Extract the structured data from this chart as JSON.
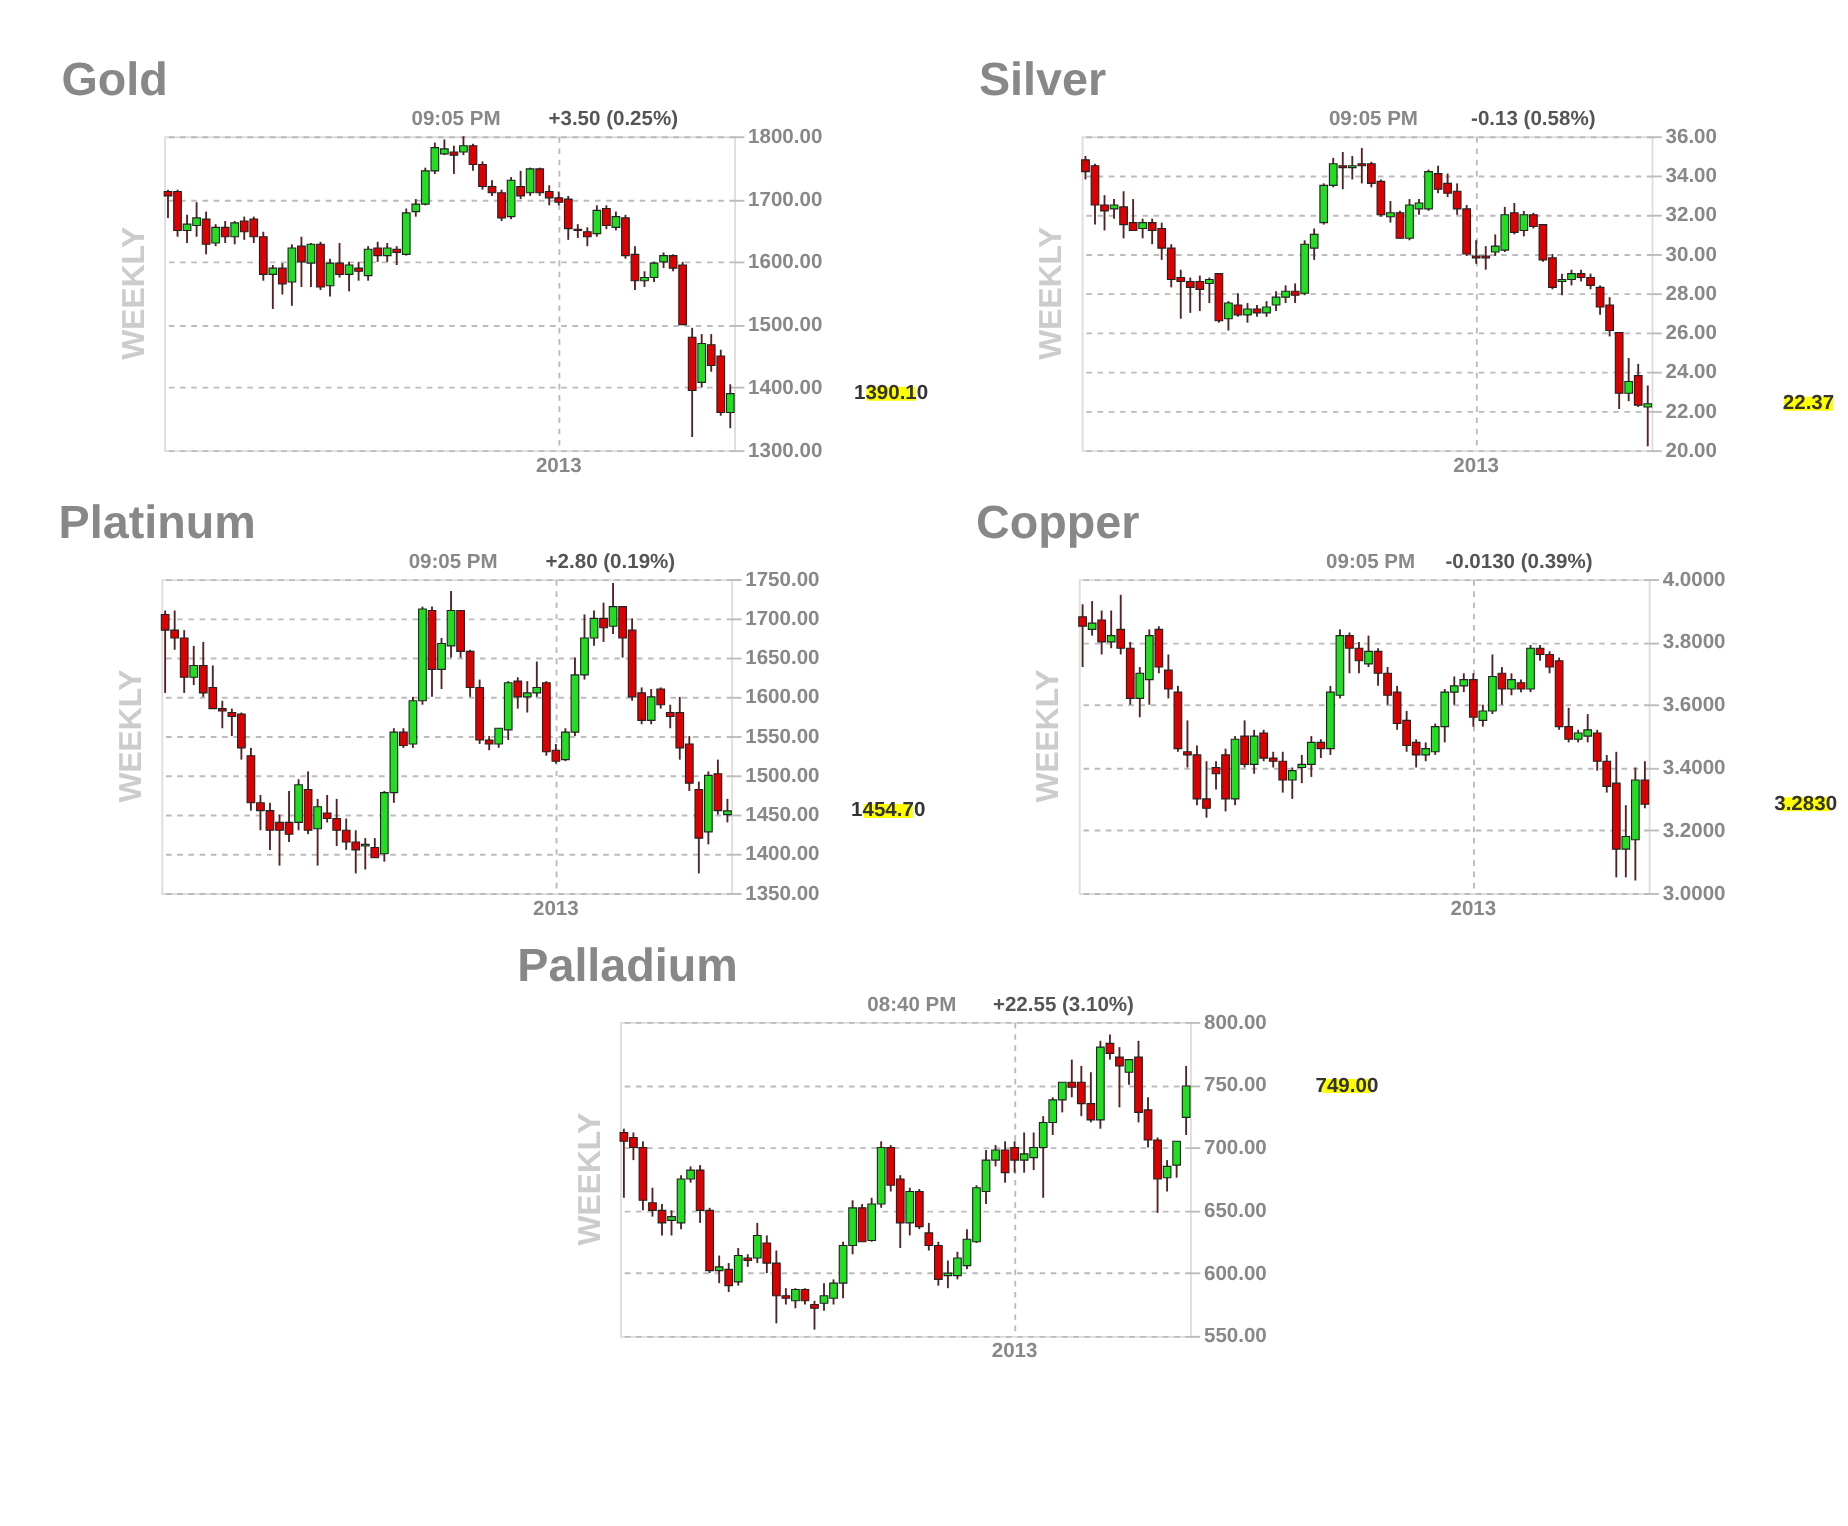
{
  "chart_data": [
    {
      "type": "candlestick",
      "title": "Gold",
      "ylabel": "WEEKLY",
      "grid": true,
      "annotations": [
        "09:05 PM",
        "+3.50 (0.25%)",
        "1390.10"
      ],
      "categories": [
        null,
        null,
        null,
        null,
        null,
        null,
        null,
        null,
        null,
        null,
        null,
        null,
        null,
        null,
        null,
        null,
        null,
        null,
        null,
        null,
        null,
        null,
        null,
        null,
        null,
        null,
        null,
        null,
        null,
        null,
        null,
        null,
        null,
        null,
        null,
        null,
        null,
        null,
        null,
        null,
        null,
        "2013",
        null,
        null,
        null,
        null,
        null,
        null,
        null,
        null,
        null,
        null,
        null,
        null,
        null,
        null,
        null,
        null,
        null,
        null
      ],
      "ylim": [
        1300,
        1800
      ],
      "yticks": [
        {
          "value": 1300,
          "label": "1300.00"
        },
        {
          "value": 1400,
          "label": "1400.00"
        },
        {
          "value": 1500,
          "label": "1500.00"
        },
        {
          "value": 1600,
          "label": "1600.00"
        },
        {
          "value": 1700,
          "label": "1700.00"
        },
        {
          "value": 1800,
          "label": "1800.00"
        }
      ],
      "ohlc": [
        [
          1712,
          1715,
          1670,
          1705
        ],
        [
          1712,
          1715,
          1640,
          1650
        ],
        [
          1650,
          1675,
          1630,
          1660
        ],
        [
          1658,
          1695,
          1640,
          1670
        ],
        [
          1668,
          1680,
          1612,
          1628
        ],
        [
          1630,
          1660,
          1625,
          1655
        ],
        [
          1655,
          1665,
          1630,
          1640
        ],
        [
          1640,
          1665,
          1628,
          1662
        ],
        [
          1665,
          1672,
          1635,
          1648
        ],
        [
          1668,
          1672,
          1630,
          1640
        ],
        [
          1640,
          1648,
          1570,
          1580
        ],
        [
          1580,
          1595,
          1525,
          1590
        ],
        [
          1590,
          1598,
          1548,
          1565
        ],
        [
          1568,
          1628,
          1530,
          1622
        ],
        [
          1625,
          1640,
          1560,
          1600
        ],
        [
          1598,
          1630,
          1560,
          1628
        ],
        [
          1628,
          1632,
          1555,
          1560
        ],
        [
          1562,
          1605,
          1545,
          1598
        ],
        [
          1598,
          1630,
          1575,
          1580
        ],
        [
          1580,
          1600,
          1553,
          1595
        ],
        [
          1590,
          1600,
          1570,
          1585
        ],
        [
          1578,
          1625,
          1570,
          1620
        ],
        [
          1622,
          1632,
          1600,
          1610
        ],
        [
          1610,
          1630,
          1600,
          1622
        ],
        [
          1620,
          1625,
          1595,
          1615
        ],
        [
          1612,
          1685,
          1610,
          1678
        ],
        [
          1680,
          1700,
          1672,
          1692
        ],
        [
          1692,
          1750,
          1690,
          1745
        ],
        [
          1745,
          1790,
          1740,
          1782
        ],
        [
          1772,
          1795,
          1770,
          1780
        ],
        [
          1775,
          1785,
          1740,
          1770
        ],
        [
          1775,
          1800,
          1770,
          1785
        ],
        [
          1785,
          1788,
          1745,
          1755
        ],
        [
          1755,
          1760,
          1715,
          1720
        ],
        [
          1720,
          1730,
          1705,
          1710
        ],
        [
          1710,
          1715,
          1665,
          1670
        ],
        [
          1672,
          1735,
          1668,
          1730
        ],
        [
          1720,
          1745,
          1700,
          1705
        ],
        [
          1710,
          1750,
          1705,
          1748
        ],
        [
          1748,
          1750,
          1705,
          1710
        ],
        [
          1712,
          1722,
          1690,
          1702
        ],
        [
          1702,
          1712,
          1690,
          1695
        ],
        [
          1700,
          1705,
          1635,
          1653
        ],
        [
          1652,
          1660,
          1638,
          1650
        ],
        [
          1648,
          1655,
          1625,
          1640
        ],
        [
          1645,
          1690,
          1640,
          1682
        ],
        [
          1685,
          1690,
          1652,
          1658
        ],
        [
          1655,
          1680,
          1650,
          1672
        ],
        [
          1670,
          1675,
          1605,
          1610
        ],
        [
          1612,
          1625,
          1555,
          1570
        ],
        [
          1570,
          1585,
          1560,
          1575
        ],
        [
          1575,
          1600,
          1568,
          1598
        ],
        [
          1600,
          1615,
          1590,
          1610
        ],
        [
          1610,
          1612,
          1585,
          1590
        ],
        [
          1595,
          1600,
          1500,
          1500
        ],
        [
          1480,
          1495,
          1321,
          1395
        ],
        [
          1408,
          1485,
          1400,
          1470
        ],
        [
          1468,
          1485,
          1425,
          1435
        ],
        [
          1450,
          1460,
          1355,
          1360
        ],
        [
          1360,
          1405,
          1335,
          1390.1
        ]
      ],
      "colors": [
        "#dd0000",
        "#dd0000",
        "#22dd22",
        "#22dd22",
        "#dd0000",
        "#22dd22",
        "#dd0000",
        "#22dd22",
        "#dd0000",
        "#dd0000",
        "#dd0000",
        "#22dd22",
        "#dd0000",
        "#22dd22",
        "#dd0000",
        "#22dd22",
        "#dd0000",
        "#22dd22",
        "#dd0000",
        "#22dd22",
        "#dd0000",
        "#22dd22",
        "#dd0000",
        "#22dd22",
        "#dd0000",
        "#22dd22",
        "#22dd22",
        "#22dd22",
        "#22dd22",
        "#22dd22",
        "#dd0000",
        "#22dd22",
        "#dd0000",
        "#dd0000",
        "#dd0000",
        "#dd0000",
        "#22dd22",
        "#dd0000",
        "#22dd22",
        "#dd0000",
        "#dd0000",
        "#dd0000",
        "#dd0000",
        "#dd0000",
        "#dd0000",
        "#22dd22",
        "#dd0000",
        "#22dd22",
        "#dd0000",
        "#dd0000",
        "#22dd22",
        "#22dd22",
        "#22dd22",
        "#dd0000",
        "#dd0000",
        "#dd0000",
        "#22dd22",
        "#dd0000",
        "#dd0000",
        "#22dd22"
      ]
    },
    {
      "type": "candlestick",
      "title": "Silver",
      "ylabel": "WEEKLY",
      "grid": true,
      "annotations": [
        "09:05 PM",
        "-0.13 (0.58%)",
        "22.37"
      ],
      "categories": [
        null,
        null,
        null,
        null,
        null,
        null,
        null,
        null,
        null,
        null,
        null,
        null,
        null,
        null,
        null,
        null,
        null,
        null,
        null,
        null,
        null,
        null,
        null,
        null,
        null,
        null,
        null,
        null,
        null,
        null,
        null,
        null,
        null,
        null,
        null,
        null,
        null,
        null,
        null,
        null,
        null,
        "2013",
        null,
        null,
        null,
        null,
        null,
        null,
        null,
        null,
        null,
        null,
        null,
        null,
        null,
        null,
        null,
        null,
        null,
        null
      ],
      "ylim": [
        20,
        36
      ],
      "yticks": [
        {
          "value": 20,
          "label": "20.00"
        },
        {
          "value": 22,
          "label": "22.00"
        },
        {
          "value": 24,
          "label": "24.00"
        },
        {
          "value": 26,
          "label": "26.00"
        },
        {
          "value": 28,
          "label": "28.00"
        },
        {
          "value": 30,
          "label": "30.00"
        },
        {
          "value": 32,
          "label": "32.00"
        },
        {
          "value": 34,
          "label": "34.00"
        },
        {
          "value": 36,
          "label": "36.00"
        }
      ],
      "ohlc": [
        [
          34.8,
          35.0,
          33.8,
          34.2
        ],
        [
          34.5,
          34.6,
          31.5,
          32.5
        ],
        [
          32.5,
          33.0,
          31.2,
          32.2
        ],
        [
          32.3,
          32.8,
          31.8,
          32.5
        ],
        [
          32.4,
          33.2,
          30.8,
          31.5
        ],
        [
          31.6,
          32.8,
          31.2,
          31.2
        ],
        [
          31.3,
          31.8,
          30.8,
          31.6
        ],
        [
          31.6,
          31.8,
          30.5,
          31.2
        ],
        [
          31.3,
          31.6,
          29.7,
          30.3
        ],
        [
          30.3,
          30.5,
          28.3,
          28.7
        ],
        [
          28.8,
          29.2,
          26.7,
          28.6
        ],
        [
          28.6,
          28.8,
          27.0,
          28.3
        ],
        [
          28.6,
          28.9,
          27.1,
          28.2
        ],
        [
          28.5,
          28.8,
          27.5,
          28.7
        ],
        [
          29.0,
          29.0,
          26.5,
          26.6
        ],
        [
          26.7,
          27.6,
          26.1,
          27.5
        ],
        [
          27.4,
          28.0,
          26.8,
          26.9
        ],
        [
          26.9,
          27.5,
          26.5,
          27.2
        ],
        [
          27.2,
          27.4,
          26.8,
          27.0
        ],
        [
          27.0,
          27.6,
          26.8,
          27.3
        ],
        [
          27.4,
          28.1,
          27.1,
          27.8
        ],
        [
          27.8,
          28.4,
          27.5,
          28.1
        ],
        [
          28.1,
          28.5,
          27.5,
          27.9
        ],
        [
          28.0,
          30.7,
          27.9,
          30.5
        ],
        [
          30.3,
          31.3,
          29.7,
          31.0
        ],
        [
          31.6,
          33.6,
          31.5,
          33.5
        ],
        [
          33.5,
          34.9,
          33.4,
          34.6
        ],
        [
          34.5,
          35.2,
          33.3,
          34.4
        ],
        [
          34.4,
          35.0,
          33.8,
          34.5
        ],
        [
          34.6,
          35.4,
          33.6,
          34.5
        ],
        [
          34.6,
          34.7,
          33.4,
          33.6
        ],
        [
          33.7,
          33.8,
          31.9,
          32.0
        ],
        [
          31.9,
          32.7,
          31.6,
          32.1
        ],
        [
          32.1,
          32.2,
          30.8,
          30.8
        ],
        [
          30.8,
          32.8,
          30.7,
          32.5
        ],
        [
          32.3,
          32.8,
          32.0,
          32.6
        ],
        [
          32.3,
          34.3,
          32.2,
          34.2
        ],
        [
          34.1,
          34.5,
          33.1,
          33.3
        ],
        [
          33.6,
          34.1,
          32.9,
          33.1
        ],
        [
          33.2,
          33.6,
          32.0,
          32.3
        ],
        [
          32.3,
          32.5,
          29.9,
          30.0
        ],
        [
          29.9,
          30.7,
          29.5,
          29.8
        ],
        [
          29.9,
          30.4,
          29.2,
          29.8
        ],
        [
          30.1,
          31.0,
          29.9,
          30.4
        ],
        [
          30.2,
          32.4,
          30.1,
          32.0
        ],
        [
          32.1,
          32.6,
          31.0,
          31.1
        ],
        [
          31.2,
          32.2,
          30.9,
          32.0
        ],
        [
          32.0,
          32.1,
          31.3,
          31.4
        ],
        [
          31.5,
          31.5,
          29.6,
          29.7
        ],
        [
          29.8,
          30.0,
          28.2,
          28.3
        ],
        [
          28.6,
          29.0,
          27.9,
          28.7
        ],
        [
          28.7,
          29.2,
          28.4,
          29.0
        ],
        [
          29.0,
          29.2,
          28.6,
          28.8
        ],
        [
          28.8,
          29.0,
          28.2,
          28.4
        ],
        [
          28.3,
          28.4,
          26.9,
          27.3
        ],
        [
          27.4,
          27.8,
          25.8,
          26.1
        ],
        [
          26.0,
          26.0,
          22.1,
          22.9
        ],
        [
          22.9,
          24.7,
          22.5,
          23.5
        ],
        [
          23.8,
          24.4,
          22.2,
          22.3
        ],
        [
          22.2,
          23.3,
          20.2,
          22.37
        ]
      ],
      "colors": [
        "#dd0000",
        "#dd0000",
        "#dd0000",
        "#22dd22",
        "#dd0000",
        "#dd0000",
        "#22dd22",
        "#dd0000",
        "#dd0000",
        "#dd0000",
        "#dd0000",
        "#dd0000",
        "#dd0000",
        "#22dd22",
        "#dd0000",
        "#22dd22",
        "#dd0000",
        "#22dd22",
        "#dd0000",
        "#22dd22",
        "#22dd22",
        "#22dd22",
        "#dd0000",
        "#22dd22",
        "#22dd22",
        "#22dd22",
        "#22dd22",
        "#dd0000",
        "#22dd22",
        "#dd0000",
        "#dd0000",
        "#dd0000",
        "#22dd22",
        "#dd0000",
        "#22dd22",
        "#22dd22",
        "#22dd22",
        "#dd0000",
        "#dd0000",
        "#dd0000",
        "#dd0000",
        "#dd0000",
        "#dd0000",
        "#22dd22",
        "#22dd22",
        "#dd0000",
        "#22dd22",
        "#dd0000",
        "#dd0000",
        "#dd0000",
        "#22dd22",
        "#22dd22",
        "#dd0000",
        "#dd0000",
        "#dd0000",
        "#dd0000",
        "#dd0000",
        "#22dd22",
        "#dd0000",
        "#22dd22"
      ]
    },
    {
      "type": "candlestick",
      "title": "Platinum",
      "ylabel": "WEEKLY",
      "grid": true,
      "annotations": [
        "09:05 PM",
        "+2.80 (0.19%)",
        "1454.70"
      ],
      "categories": [
        null,
        null,
        null,
        null,
        null,
        null,
        null,
        null,
        null,
        null,
        null,
        null,
        null,
        null,
        null,
        null,
        null,
        null,
        null,
        null,
        null,
        null,
        null,
        null,
        null,
        null,
        null,
        null,
        null,
        null,
        null,
        null,
        null,
        null,
        null,
        null,
        null,
        null,
        null,
        null,
        null,
        "2013",
        null,
        null,
        null,
        null,
        null,
        null,
        null,
        null,
        null,
        null,
        null,
        null,
        null,
        null,
        null,
        null,
        null,
        null
      ],
      "ylim": [
        1350,
        1750
      ],
      "yticks": [
        {
          "value": 1350,
          "label": "1350.00"
        },
        {
          "value": 1400,
          "label": "1400.00"
        },
        {
          "value": 1450,
          "label": "1450.00"
        },
        {
          "value": 1500,
          "label": "1500.00"
        },
        {
          "value": 1550,
          "label": "1550.00"
        },
        {
          "value": 1600,
          "label": "1600.00"
        },
        {
          "value": 1650,
          "label": "1650.00"
        },
        {
          "value": 1700,
          "label": "1700.00"
        },
        {
          "value": 1750,
          "label": "1750.00"
        }
      ],
      "ohlc": [
        [
          1705,
          1710,
          1605,
          1685
        ],
        [
          1685,
          1710,
          1660,
          1675
        ],
        [
          1675,
          1685,
          1605,
          1625
        ],
        [
          1625,
          1665,
          1615,
          1640
        ],
        [
          1640,
          1670,
          1600,
          1605
        ],
        [
          1612,
          1640,
          1585,
          1585
        ],
        [
          1585,
          1595,
          1560,
          1582
        ],
        [
          1580,
          1585,
          1550,
          1575
        ],
        [
          1578,
          1580,
          1520,
          1535
        ],
        [
          1525,
          1535,
          1455,
          1465
        ],
        [
          1465,
          1475,
          1430,
          1455
        ],
        [
          1455,
          1465,
          1405,
          1430
        ],
        [
          1440,
          1450,
          1385,
          1430
        ],
        [
          1440,
          1480,
          1415,
          1425
        ],
        [
          1440,
          1495,
          1430,
          1488
        ],
        [
          1482,
          1505,
          1425,
          1430
        ],
        [
          1432,
          1470,
          1385,
          1460
        ],
        [
          1452,
          1475,
          1440,
          1445
        ],
        [
          1445,
          1470,
          1410,
          1430
        ],
        [
          1430,
          1445,
          1405,
          1415
        ],
        [
          1415,
          1430,
          1375,
          1405
        ],
        [
          1410,
          1420,
          1380,
          1412
        ],
        [
          1408,
          1420,
          1395,
          1395
        ],
        [
          1400,
          1480,
          1390,
          1478
        ],
        [
          1478,
          1560,
          1465,
          1555
        ],
        [
          1555,
          1560,
          1535,
          1538
        ],
        [
          1540,
          1600,
          1535,
          1595
        ],
        [
          1595,
          1715,
          1590,
          1712
        ],
        [
          1710,
          1715,
          1600,
          1635
        ],
        [
          1635,
          1675,
          1610,
          1668
        ],
        [
          1665,
          1735,
          1650,
          1710
        ],
        [
          1710,
          1710,
          1650,
          1658
        ],
        [
          1658,
          1660,
          1600,
          1612
        ],
        [
          1612,
          1622,
          1540,
          1545
        ],
        [
          1545,
          1550,
          1532,
          1540
        ],
        [
          1540,
          1560,
          1535,
          1560
        ],
        [
          1558,
          1620,
          1545,
          1618
        ],
        [
          1620,
          1625,
          1585,
          1600
        ],
        [
          1600,
          1620,
          1580,
          1605
        ],
        [
          1605,
          1645,
          1600,
          1612
        ],
        [
          1618,
          1620,
          1525,
          1530
        ],
        [
          1532,
          1540,
          1515,
          1518
        ],
        [
          1520,
          1560,
          1518,
          1555
        ],
        [
          1555,
          1650,
          1550,
          1628
        ],
        [
          1628,
          1705,
          1622,
          1675
        ],
        [
          1675,
          1710,
          1665,
          1700
        ],
        [
          1700,
          1720,
          1670,
          1688
        ],
        [
          1690,
          1745,
          1680,
          1715
        ],
        [
          1715,
          1715,
          1650,
          1675
        ],
        [
          1685,
          1700,
          1595,
          1600
        ],
        [
          1605,
          1612,
          1565,
          1570
        ],
        [
          1570,
          1610,
          1565,
          1600
        ],
        [
          1610,
          1612,
          1585,
          1590
        ],
        [
          1580,
          1590,
          1560,
          1575
        ],
        [
          1580,
          1600,
          1520,
          1535
        ],
        [
          1540,
          1550,
          1480,
          1490
        ],
        [
          1482,
          1492,
          1375,
          1420
        ],
        [
          1428,
          1505,
          1412,
          1500
        ],
        [
          1502,
          1520,
          1450,
          1455
        ],
        [
          1450,
          1470,
          1440,
          1454.7
        ]
      ],
      "colors": [
        "#dd0000",
        "#dd0000",
        "#dd0000",
        "#22dd22",
        "#dd0000",
        "#dd0000",
        "#dd0000",
        "#dd0000",
        "#dd0000",
        "#dd0000",
        "#dd0000",
        "#dd0000",
        "#dd0000",
        "#dd0000",
        "#22dd22",
        "#dd0000",
        "#22dd22",
        "#dd0000",
        "#dd0000",
        "#dd0000",
        "#dd0000",
        "#22dd22",
        "#dd0000",
        "#22dd22",
        "#22dd22",
        "#dd0000",
        "#22dd22",
        "#22dd22",
        "#dd0000",
        "#22dd22",
        "#22dd22",
        "#dd0000",
        "#dd0000",
        "#dd0000",
        "#dd0000",
        "#22dd22",
        "#22dd22",
        "#dd0000",
        "#22dd22",
        "#22dd22",
        "#dd0000",
        "#dd0000",
        "#22dd22",
        "#22dd22",
        "#22dd22",
        "#22dd22",
        "#dd0000",
        "#22dd22",
        "#dd0000",
        "#dd0000",
        "#dd0000",
        "#22dd22",
        "#dd0000",
        "#dd0000",
        "#dd0000",
        "#dd0000",
        "#dd0000",
        "#22dd22",
        "#dd0000",
        "#22dd22"
      ]
    },
    {
      "type": "candlestick",
      "title": "Copper",
      "ylabel": "WEEKLY",
      "grid": true,
      "annotations": [
        "09:05 PM",
        "-0.0130 (0.39%)",
        "3.2830"
      ],
      "categories": [
        null,
        null,
        null,
        null,
        null,
        null,
        null,
        null,
        null,
        null,
        null,
        null,
        null,
        null,
        null,
        null,
        null,
        null,
        null,
        null,
        null,
        null,
        null,
        null,
        null,
        null,
        null,
        null,
        null,
        null,
        null,
        null,
        null,
        null,
        null,
        null,
        null,
        null,
        null,
        null,
        null,
        "2013",
        null,
        null,
        null,
        null,
        null,
        null,
        null,
        null,
        null,
        null,
        null,
        null,
        null,
        null,
        null,
        null,
        null,
        null
      ],
      "ylim": [
        3.0,
        4.0
      ],
      "yticks": [
        {
          "value": 3.0,
          "label": "3.0000"
        },
        {
          "value": 3.2,
          "label": "3.2000"
        },
        {
          "value": 3.4,
          "label": "3.4000"
        },
        {
          "value": 3.6,
          "label": "3.6000"
        },
        {
          "value": 3.8,
          "label": "3.8000"
        },
        {
          "value": 4.0,
          "label": "4.0000"
        }
      ],
      "ohlc": [
        [
          3.88,
          3.92,
          3.72,
          3.85
        ],
        [
          3.84,
          3.93,
          3.82,
          3.86
        ],
        [
          3.87,
          3.9,
          3.76,
          3.8
        ],
        [
          3.8,
          3.9,
          3.78,
          3.82
        ],
        [
          3.84,
          3.95,
          3.76,
          3.78
        ],
        [
          3.78,
          3.8,
          3.6,
          3.62
        ],
        [
          3.62,
          3.72,
          3.56,
          3.7
        ],
        [
          3.68,
          3.84,
          3.6,
          3.82
        ],
        [
          3.84,
          3.85,
          3.7,
          3.72
        ],
        [
          3.71,
          3.76,
          3.62,
          3.65
        ],
        [
          3.64,
          3.66,
          3.45,
          3.46
        ],
        [
          3.45,
          3.55,
          3.4,
          3.44
        ],
        [
          3.44,
          3.47,
          3.28,
          3.3
        ],
        [
          3.3,
          3.42,
          3.24,
          3.27
        ],
        [
          3.4,
          3.42,
          3.33,
          3.38
        ],
        [
          3.44,
          3.46,
          3.26,
          3.3
        ],
        [
          3.3,
          3.5,
          3.28,
          3.49
        ],
        [
          3.5,
          3.55,
          3.4,
          3.41
        ],
        [
          3.41,
          3.52,
          3.38,
          3.5
        ],
        [
          3.51,
          3.52,
          3.42,
          3.43
        ],
        [
          3.43,
          3.45,
          3.4,
          3.42
        ],
        [
          3.42,
          3.45,
          3.32,
          3.36
        ],
        [
          3.36,
          3.4,
          3.3,
          3.39
        ],
        [
          3.4,
          3.44,
          3.35,
          3.41
        ],
        [
          3.41,
          3.5,
          3.37,
          3.48
        ],
        [
          3.48,
          3.49,
          3.43,
          3.46
        ],
        [
          3.46,
          3.66,
          3.44,
          3.64
        ],
        [
          3.63,
          3.84,
          3.62,
          3.82
        ],
        [
          3.82,
          3.83,
          3.7,
          3.78
        ],
        [
          3.78,
          3.8,
          3.7,
          3.74
        ],
        [
          3.73,
          3.82,
          3.72,
          3.77
        ],
        [
          3.77,
          3.78,
          3.66,
          3.7
        ],
        [
          3.7,
          3.72,
          3.6,
          3.63
        ],
        [
          3.64,
          3.66,
          3.52,
          3.54
        ],
        [
          3.55,
          3.58,
          3.45,
          3.47
        ],
        [
          3.48,
          3.49,
          3.4,
          3.44
        ],
        [
          3.44,
          3.48,
          3.42,
          3.46
        ],
        [
          3.45,
          3.54,
          3.44,
          3.53
        ],
        [
          3.53,
          3.65,
          3.48,
          3.64
        ],
        [
          3.64,
          3.69,
          3.6,
          3.66
        ],
        [
          3.66,
          3.7,
          3.64,
          3.68
        ],
        [
          3.68,
          3.7,
          3.53,
          3.56
        ],
        [
          3.55,
          3.6,
          3.53,
          3.58
        ],
        [
          3.58,
          3.76,
          3.57,
          3.69
        ],
        [
          3.7,
          3.72,
          3.6,
          3.65
        ],
        [
          3.65,
          3.7,
          3.63,
          3.68
        ],
        [
          3.67,
          3.68,
          3.64,
          3.65
        ],
        [
          3.65,
          3.79,
          3.64,
          3.78
        ],
        [
          3.78,
          3.79,
          3.74,
          3.76
        ],
        [
          3.76,
          3.77,
          3.7,
          3.72
        ],
        [
          3.74,
          3.75,
          3.52,
          3.53
        ],
        [
          3.53,
          3.59,
          3.48,
          3.49
        ],
        [
          3.49,
          3.52,
          3.48,
          3.51
        ],
        [
          3.5,
          3.57,
          3.48,
          3.52
        ],
        [
          3.51,
          3.52,
          3.39,
          3.42
        ],
        [
          3.42,
          3.44,
          3.32,
          3.34
        ],
        [
          3.35,
          3.45,
          3.05,
          3.14
        ],
        [
          3.14,
          3.28,
          3.05,
          3.18
        ],
        [
          3.17,
          3.4,
          3.04,
          3.36
        ],
        [
          3.36,
          3.42,
          3.27,
          3.283
        ]
      ],
      "colors": [
        "#dd0000",
        "#22dd22",
        "#dd0000",
        "#22dd22",
        "#dd0000",
        "#dd0000",
        "#22dd22",
        "#22dd22",
        "#dd0000",
        "#dd0000",
        "#dd0000",
        "#dd0000",
        "#dd0000",
        "#dd0000",
        "#dd0000",
        "#dd0000",
        "#22dd22",
        "#dd0000",
        "#22dd22",
        "#dd0000",
        "#dd0000",
        "#dd0000",
        "#22dd22",
        "#22dd22",
        "#22dd22",
        "#dd0000",
        "#22dd22",
        "#22dd22",
        "#dd0000",
        "#dd0000",
        "#22dd22",
        "#dd0000",
        "#dd0000",
        "#dd0000",
        "#dd0000",
        "#dd0000",
        "#22dd22",
        "#22dd22",
        "#22dd22",
        "#22dd22",
        "#22dd22",
        "#dd0000",
        "#22dd22",
        "#22dd22",
        "#dd0000",
        "#22dd22",
        "#dd0000",
        "#22dd22",
        "#dd0000",
        "#dd0000",
        "#dd0000",
        "#dd0000",
        "#22dd22",
        "#22dd22",
        "#dd0000",
        "#dd0000",
        "#dd0000",
        "#22dd22",
        "#22dd22",
        "#dd0000"
      ]
    },
    {
      "type": "candlestick",
      "title": "Palladium",
      "ylabel": "WEEKLY",
      "grid": true,
      "annotations": [
        "08:40 PM",
        "+22.55 (3.10%)",
        "749.00"
      ],
      "categories": [
        null,
        null,
        null,
        null,
        null,
        null,
        null,
        null,
        null,
        null,
        null,
        null,
        null,
        null,
        null,
        null,
        null,
        null,
        null,
        null,
        null,
        null,
        null,
        null,
        null,
        null,
        null,
        null,
        null,
        null,
        null,
        null,
        null,
        null,
        null,
        null,
        null,
        null,
        null,
        null,
        null,
        "2013",
        null,
        null,
        null,
        null,
        null,
        null,
        null,
        null,
        null,
        null,
        null,
        null,
        null,
        null,
        null,
        null,
        null,
        null
      ],
      "ylim": [
        550,
        800
      ],
      "yticks": [
        {
          "value": 550,
          "label": "550.00"
        },
        {
          "value": 600,
          "label": "600.00"
        },
        {
          "value": 650,
          "label": "650.00"
        },
        {
          "value": 700,
          "label": "700.00"
        },
        {
          "value": 750,
          "label": "750.00"
        },
        {
          "value": 800,
          "label": "800.00"
        }
      ],
      "ohlc": [
        [
          712,
          715,
          660,
          705
        ],
        [
          708,
          712,
          690,
          700
        ],
        [
          700,
          705,
          650,
          658
        ],
        [
          656,
          668,
          645,
          650
        ],
        [
          650,
          655,
          630,
          640
        ],
        [
          642,
          650,
          630,
          645
        ],
        [
          640,
          678,
          635,
          675
        ],
        [
          675,
          685,
          672,
          682
        ],
        [
          682,
          686,
          640,
          650
        ],
        [
          650,
          652,
          600,
          602
        ],
        [
          602,
          614,
          592,
          605
        ],
        [
          603,
          608,
          585,
          590
        ],
        [
          593,
          620,
          590,
          614
        ],
        [
          612,
          615,
          605,
          610
        ],
        [
          612,
          640,
          608,
          630
        ],
        [
          624,
          630,
          600,
          608
        ],
        [
          608,
          618,
          560,
          582
        ],
        [
          582,
          588,
          575,
          580
        ],
        [
          578,
          588,
          572,
          587
        ],
        [
          587,
          588,
          575,
          578
        ],
        [
          575,
          578,
          555,
          572
        ],
        [
          576,
          592,
          570,
          582
        ],
        [
          580,
          595,
          575,
          592
        ],
        [
          592,
          625,
          580,
          622
        ],
        [
          622,
          658,
          615,
          652
        ],
        [
          652,
          655,
          625,
          625
        ],
        [
          626,
          660,
          625,
          655
        ],
        [
          655,
          705,
          652,
          700
        ],
        [
          700,
          702,
          665,
          670
        ],
        [
          675,
          678,
          620,
          640
        ],
        [
          640,
          668,
          630,
          665
        ],
        [
          665,
          667,
          635,
          637
        ],
        [
          632,
          640,
          618,
          622
        ],
        [
          622,
          625,
          590,
          595
        ],
        [
          598,
          610,
          588,
          600
        ],
        [
          598,
          617,
          595,
          612
        ],
        [
          606,
          635,
          603,
          627
        ],
        [
          625,
          670,
          624,
          668
        ],
        [
          665,
          698,
          655,
          690
        ],
        [
          690,
          702,
          685,
          698
        ],
        [
          698,
          705,
          672,
          680
        ],
        [
          700,
          705,
          680,
          690
        ],
        [
          690,
          712,
          680,
          695
        ],
        [
          692,
          712,
          682,
          700
        ],
        [
          700,
          725,
          660,
          720
        ],
        [
          720,
          740,
          710,
          738
        ],
        [
          738,
          752,
          728,
          752
        ],
        [
          752,
          770,
          740,
          748
        ],
        [
          752,
          765,
          725,
          735
        ],
        [
          735,
          760,
          720,
          722
        ],
        [
          722,
          785,
          715,
          780
        ],
        [
          783,
          790,
          770,
          775
        ],
        [
          772,
          780,
          732,
          765
        ],
        [
          760,
          770,
          750,
          770
        ],
        [
          772,
          785,
          720,
          728
        ],
        [
          730,
          740,
          700,
          706
        ],
        [
          706,
          708,
          648,
          675
        ],
        [
          676,
          690,
          665,
          685
        ],
        [
          686,
          705,
          676,
          705
        ],
        [
          724,
          765,
          710,
          749
        ]
      ],
      "colors": [
        "#dd0000",
        "#dd0000",
        "#dd0000",
        "#dd0000",
        "#dd0000",
        "#22dd22",
        "#22dd22",
        "#22dd22",
        "#dd0000",
        "#dd0000",
        "#22dd22",
        "#dd0000",
        "#22dd22",
        "#dd0000",
        "#22dd22",
        "#dd0000",
        "#dd0000",
        "#dd0000",
        "#22dd22",
        "#dd0000",
        "#dd0000",
        "#22dd22",
        "#22dd22",
        "#22dd22",
        "#22dd22",
        "#dd0000",
        "#22dd22",
        "#22dd22",
        "#dd0000",
        "#dd0000",
        "#22dd22",
        "#dd0000",
        "#dd0000",
        "#dd0000",
        "#22dd22",
        "#22dd22",
        "#22dd22",
        "#22dd22",
        "#22dd22",
        "#22dd22",
        "#dd0000",
        "#dd0000",
        "#22dd22",
        "#22dd22",
        "#22dd22",
        "#22dd22",
        "#22dd22",
        "#dd0000",
        "#dd0000",
        "#dd0000",
        "#22dd22",
        "#dd0000",
        "#dd0000",
        "#22dd22",
        "#dd0000",
        "#dd0000",
        "#dd0000",
        "#22dd22",
        "#22dd22",
        "#22dd22"
      ]
    }
  ]
}
